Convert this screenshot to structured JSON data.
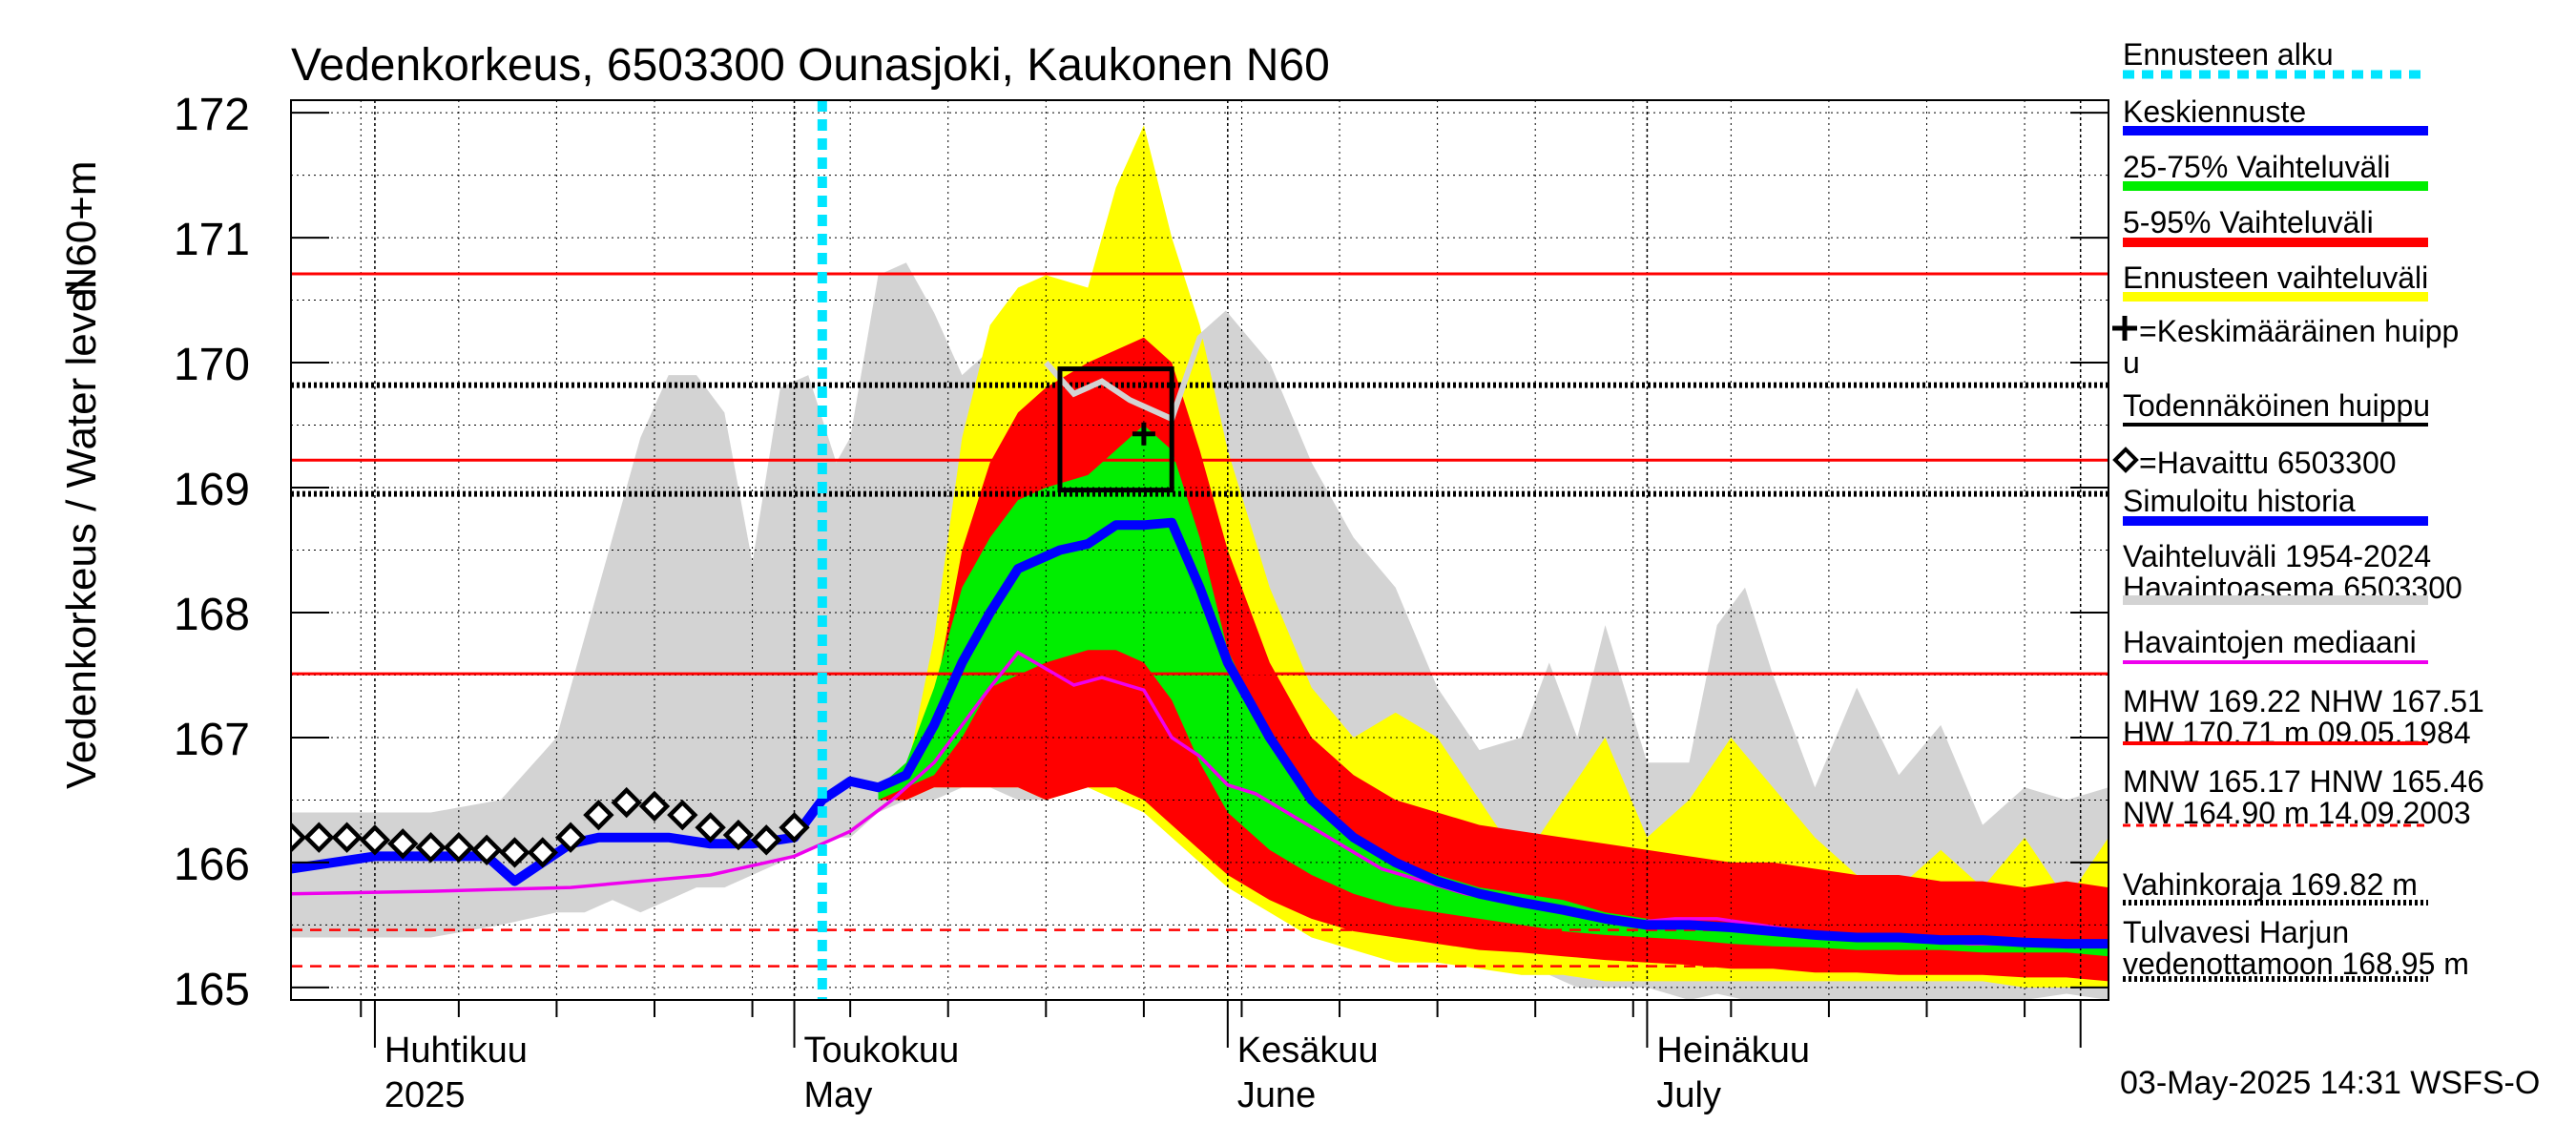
{
  "chart_data": {
    "type": "area",
    "title": "Vedenkorkeus, 6503300 Ounasjoki, Kaukonen N60",
    "ylabel": "Vedenkorkeus / Water level",
    "yunit": "N60+m",
    "ylim": [
      164.9,
      172.1
    ],
    "yticks": [
      165,
      166,
      167,
      168,
      169,
      170,
      171,
      172
    ],
    "xlim": [
      "2025-03-26",
      "2025-08-03"
    ],
    "grid": true,
    "legend_position": "right",
    "x_month_labels": [
      {
        "fi": "Huhtikuu",
        "en": "2025",
        "date": "2025-04-01"
      },
      {
        "fi": "Toukokuu",
        "en": "May",
        "date": "2025-05-01"
      },
      {
        "fi": "Kesäkuu",
        "en": "June",
        "date": "2025-06-01"
      },
      {
        "fi": "Heinäkuu",
        "en": "July",
        "date": "2025-07-01"
      }
    ],
    "forecast_start": "2025-05-03",
    "reference_lines": [
      {
        "name": "HW",
        "value": 170.71,
        "style": "solid",
        "color": "#ff0000"
      },
      {
        "name": "MHW",
        "value": 169.22,
        "style": "solid",
        "color": "#ff0000"
      },
      {
        "name": "NHW",
        "value": 167.51,
        "style": "solid",
        "color": "#ff0000"
      },
      {
        "name": "HNW",
        "value": 165.46,
        "style": "dashed",
        "color": "#ff0000"
      },
      {
        "name": "MNW",
        "value": 165.17,
        "style": "dashed",
        "color": "#ff0000"
      },
      {
        "name": "Vahinkoraja",
        "value": 169.82,
        "style": "dotted",
        "color": "#000000"
      },
      {
        "name": "Tulvavesi Harjun vedenottamoon",
        "value": 168.95,
        "style": "dotted",
        "color": "#000000"
      }
    ],
    "probable_peak_box": {
      "x0": "2025-05-20",
      "x1": "2025-05-28",
      "y0": 168.98,
      "y1": 169.95
    },
    "mean_peak_marker": {
      "x": "2025-05-26",
      "y": 169.43
    },
    "colors": {
      "history_range": "#d3d3d3",
      "forecast_range": "#ffff00",
      "p5_95": "#ff0000",
      "p25_75": "#00ee00",
      "mean_forecast": "#0000ff",
      "median": "#ee00ee",
      "observed": "#000000",
      "forecast_start": "#00e5ff",
      "max_history": "#d3d3d3"
    },
    "series": {
      "history_range": {
        "x": [
          "2025-03-26",
          "2025-04-05",
          "2025-04-10",
          "2025-04-14",
          "2025-04-16",
          "2025-04-18",
          "2025-04-20",
          "2025-04-22",
          "2025-04-24",
          "2025-04-26",
          "2025-04-28",
          "2025-04-30",
          "2025-05-02",
          "2025-05-04",
          "2025-05-05",
          "2025-05-07",
          "2025-05-09",
          "2025-05-11",
          "2025-05-13",
          "2025-05-15",
          "2025-05-17",
          "2025-05-19",
          "2025-05-22",
          "2025-05-25",
          "2025-05-28",
          "2025-06-01",
          "2025-06-04",
          "2025-06-07",
          "2025-06-10",
          "2025-06-13",
          "2025-06-16",
          "2025-06-19",
          "2025-06-22",
          "2025-06-24",
          "2025-06-26",
          "2025-06-28",
          "2025-07-01",
          "2025-07-04",
          "2025-07-06",
          "2025-07-08",
          "2025-07-10",
          "2025-07-13",
          "2025-07-16",
          "2025-07-19",
          "2025-07-22",
          "2025-07-25",
          "2025-07-28",
          "2025-07-31",
          "2025-08-03"
        ],
        "upper": [
          166.4,
          166.4,
          166.5,
          167.0,
          167.8,
          168.6,
          169.4,
          169.9,
          169.9,
          169.6,
          168.4,
          169.8,
          169.9,
          169.2,
          169.4,
          170.7,
          170.8,
          170.4,
          169.9,
          170.1,
          169.9,
          169.4,
          169.0,
          169.3,
          170.0,
          170.4,
          170.0,
          169.2,
          168.6,
          168.2,
          167.4,
          166.9,
          167.0,
          167.6,
          167.0,
          167.9,
          166.8,
          166.8,
          167.9,
          168.2,
          167.5,
          166.6,
          167.4,
          166.7,
          167.1,
          166.3,
          166.6,
          166.5,
          166.6
        ],
        "lower": [
          165.4,
          165.4,
          165.5,
          165.6,
          165.6,
          165.7,
          165.6,
          165.7,
          165.8,
          165.8,
          165.9,
          166.0,
          166.1,
          166.2,
          166.2,
          166.4,
          166.5,
          166.5,
          166.6,
          166.6,
          166.5,
          166.5,
          166.6,
          166.5,
          166.5,
          166.3,
          166.0,
          165.8,
          165.6,
          165.5,
          165.3,
          165.2,
          165.1,
          165.1,
          165.0,
          165.0,
          165.0,
          164.9,
          164.95,
          164.9,
          164.9,
          164.9,
          164.9,
          164.9,
          164.9,
          164.9,
          164.9,
          164.95,
          164.9
        ]
      },
      "forecast_range": {
        "x": [
          "2025-05-07",
          "2025-05-09",
          "2025-05-11",
          "2025-05-13",
          "2025-05-15",
          "2025-05-17",
          "2025-05-19",
          "2025-05-22",
          "2025-05-24",
          "2025-05-26",
          "2025-05-28",
          "2025-05-30",
          "2025-06-01",
          "2025-06-04",
          "2025-06-07",
          "2025-06-10",
          "2025-06-13",
          "2025-06-16",
          "2025-06-19",
          "2025-06-22",
          "2025-06-25",
          "2025-06-28",
          "2025-07-01",
          "2025-07-04",
          "2025-07-07",
          "2025-07-10",
          "2025-07-13",
          "2025-07-16",
          "2025-07-19",
          "2025-07-22",
          "2025-07-25",
          "2025-07-28",
          "2025-07-31",
          "2025-08-03"
        ],
        "upper": [
          166.5,
          166.7,
          167.8,
          169.4,
          170.3,
          170.6,
          170.7,
          170.6,
          171.4,
          171.9,
          171.0,
          170.3,
          169.3,
          168.2,
          167.4,
          167.0,
          167.2,
          167.0,
          166.5,
          166.0,
          166.5,
          167.0,
          166.2,
          166.5,
          167.0,
          166.6,
          166.2,
          165.9,
          165.8,
          166.1,
          165.8,
          166.2,
          165.7,
          166.2
        ],
        "lower": [
          166.5,
          166.5,
          166.6,
          166.6,
          166.6,
          166.6,
          166.5,
          166.6,
          166.5,
          166.4,
          166.2,
          166.0,
          165.8,
          165.6,
          165.4,
          165.3,
          165.2,
          165.2,
          165.15,
          165.1,
          165.1,
          165.05,
          165.05,
          165.05,
          165.05,
          165.05,
          165.05,
          165.05,
          165.05,
          165.05,
          165.05,
          165.0,
          165.0,
          165.0
        ]
      },
      "p5_95": {
        "x": [
          "2025-05-07",
          "2025-05-09",
          "2025-05-11",
          "2025-05-13",
          "2025-05-15",
          "2025-05-17",
          "2025-05-19",
          "2025-05-22",
          "2025-05-24",
          "2025-05-26",
          "2025-05-28",
          "2025-05-30",
          "2025-06-01",
          "2025-06-04",
          "2025-06-07",
          "2025-06-10",
          "2025-06-13",
          "2025-06-16",
          "2025-06-19",
          "2025-06-22",
          "2025-06-25",
          "2025-06-28",
          "2025-07-01",
          "2025-07-04",
          "2025-07-07",
          "2025-07-10",
          "2025-07-13",
          "2025-07-16",
          "2025-07-19",
          "2025-07-22",
          "2025-07-25",
          "2025-07-28",
          "2025-07-31",
          "2025-08-03"
        ],
        "upper": [
          166.5,
          166.7,
          167.3,
          168.5,
          169.2,
          169.6,
          169.8,
          170.0,
          170.1,
          170.2,
          170.0,
          169.3,
          168.5,
          167.6,
          167.0,
          166.7,
          166.5,
          166.4,
          166.3,
          166.25,
          166.2,
          166.15,
          166.1,
          166.05,
          166.0,
          166.0,
          165.95,
          165.9,
          165.9,
          165.85,
          165.85,
          165.8,
          165.85,
          165.8
        ],
        "lower": [
          166.5,
          166.5,
          166.6,
          166.6,
          166.6,
          166.6,
          166.5,
          166.6,
          166.6,
          166.5,
          166.3,
          166.1,
          165.9,
          165.7,
          165.55,
          165.45,
          165.4,
          165.35,
          165.3,
          165.28,
          165.25,
          165.22,
          165.2,
          165.18,
          165.15,
          165.15,
          165.12,
          165.12,
          165.1,
          165.1,
          165.1,
          165.08,
          165.08,
          165.05
        ]
      },
      "p25_75": {
        "x": [
          "2025-05-07",
          "2025-05-09",
          "2025-05-11",
          "2025-05-13",
          "2025-05-15",
          "2025-05-17",
          "2025-05-19",
          "2025-05-22",
          "2025-05-24",
          "2025-05-26",
          "2025-05-28",
          "2025-05-30",
          "2025-06-01",
          "2025-06-04",
          "2025-06-07",
          "2025-06-10",
          "2025-06-13",
          "2025-06-16",
          "2025-06-19",
          "2025-06-22",
          "2025-06-25",
          "2025-06-28",
          "2025-07-01",
          "2025-07-04",
          "2025-07-07",
          "2025-07-10",
          "2025-07-13",
          "2025-07-16",
          "2025-07-19",
          "2025-07-22",
          "2025-07-25",
          "2025-07-28",
          "2025-07-31",
          "2025-08-03"
        ],
        "upper": [
          166.6,
          166.8,
          167.4,
          168.2,
          168.6,
          168.9,
          169.0,
          169.1,
          169.3,
          169.5,
          169.3,
          168.6,
          167.7,
          167.0,
          166.5,
          166.2,
          166.0,
          165.9,
          165.8,
          165.75,
          165.7,
          165.6,
          165.55,
          165.5,
          165.5,
          165.45,
          165.45,
          165.4,
          165.4,
          165.4,
          165.38,
          165.38,
          165.38,
          165.35
        ],
        "lower": [
          166.5,
          166.6,
          166.7,
          167.0,
          167.4,
          167.5,
          167.6,
          167.7,
          167.7,
          167.6,
          167.3,
          166.8,
          166.4,
          166.1,
          165.9,
          165.75,
          165.65,
          165.6,
          165.55,
          165.5,
          165.45,
          165.42,
          165.4,
          165.38,
          165.35,
          165.33,
          165.32,
          165.3,
          165.3,
          165.3,
          165.28,
          165.28,
          165.28,
          165.25
        ]
      },
      "mean_forecast": {
        "x": [
          "2025-03-26",
          "2025-04-01",
          "2025-04-05",
          "2025-04-09",
          "2025-04-11",
          "2025-04-13",
          "2025-04-15",
          "2025-04-17",
          "2025-04-19",
          "2025-04-22",
          "2025-04-25",
          "2025-04-28",
          "2025-05-01",
          "2025-05-03",
          "2025-05-05",
          "2025-05-07",
          "2025-05-09",
          "2025-05-11",
          "2025-05-13",
          "2025-05-15",
          "2025-05-17",
          "2025-05-20",
          "2025-05-22",
          "2025-05-24",
          "2025-05-26",
          "2025-05-28",
          "2025-05-30",
          "2025-06-01",
          "2025-06-04",
          "2025-06-07",
          "2025-06-10",
          "2025-06-13",
          "2025-06-16",
          "2025-06-19",
          "2025-06-22",
          "2025-06-25",
          "2025-06-28",
          "2025-07-01",
          "2025-07-04",
          "2025-07-07",
          "2025-07-10",
          "2025-07-13",
          "2025-07-16",
          "2025-07-19",
          "2025-07-22",
          "2025-07-25",
          "2025-07-28",
          "2025-07-31",
          "2025-08-03"
        ],
        "values": [
          165.95,
          166.05,
          166.05,
          166.05,
          165.85,
          166.0,
          166.15,
          166.2,
          166.2,
          166.2,
          166.15,
          166.15,
          166.2,
          166.5,
          166.65,
          166.6,
          166.7,
          167.1,
          167.6,
          168.0,
          168.35,
          168.5,
          168.55,
          168.7,
          168.7,
          168.72,
          168.2,
          167.6,
          167.0,
          166.5,
          166.2,
          166.0,
          165.85,
          165.75,
          165.68,
          165.62,
          165.55,
          165.5,
          165.5,
          165.48,
          165.45,
          165.42,
          165.4,
          165.4,
          165.38,
          165.38,
          165.36,
          165.35,
          165.35
        ]
      },
      "median": {
        "x": [
          "2025-03-26",
          "2025-04-05",
          "2025-04-15",
          "2025-04-25",
          "2025-05-01",
          "2025-05-05",
          "2025-05-08",
          "2025-05-11",
          "2025-05-13",
          "2025-05-15",
          "2025-05-17",
          "2025-05-19",
          "2025-05-21",
          "2025-05-23",
          "2025-05-26",
          "2025-05-28",
          "2025-05-30",
          "2025-06-01",
          "2025-06-03",
          "2025-06-06",
          "2025-06-09",
          "2025-06-12",
          "2025-06-15",
          "2025-06-18",
          "2025-06-21",
          "2025-06-24",
          "2025-06-27",
          "2025-06-30",
          "2025-07-03",
          "2025-07-06",
          "2025-07-09",
          "2025-07-12",
          "2025-07-15",
          "2025-07-18",
          "2025-07-21",
          "2025-07-24",
          "2025-07-27",
          "2025-07-30",
          "2025-08-03"
        ],
        "values": [
          165.75,
          165.77,
          165.8,
          165.9,
          166.05,
          166.25,
          166.5,
          166.8,
          167.1,
          167.4,
          167.68,
          167.55,
          167.42,
          167.48,
          167.38,
          167.0,
          166.85,
          166.62,
          166.55,
          166.35,
          166.15,
          165.95,
          165.85,
          165.75,
          165.7,
          165.62,
          165.55,
          165.52,
          165.55,
          165.55,
          165.5,
          165.45,
          165.4,
          165.38,
          165.38,
          165.35,
          165.35,
          165.33,
          165.33
        ]
      },
      "max_history": {
        "x": [
          "2025-05-19",
          "2025-05-21",
          "2025-05-23",
          "2025-05-25",
          "2025-05-27",
          "2025-05-28",
          "2025-05-30",
          "2025-06-01"
        ],
        "values": [
          170.0,
          169.75,
          169.85,
          169.7,
          169.6,
          169.55,
          170.2,
          170.4
        ]
      },
      "observed": {
        "x": [
          "2025-03-26",
          "2025-03-28",
          "2025-03-30",
          "2025-04-01",
          "2025-04-03",
          "2025-04-05",
          "2025-04-07",
          "2025-04-09",
          "2025-04-11",
          "2025-04-13",
          "2025-04-15",
          "2025-04-17",
          "2025-04-19",
          "2025-04-21",
          "2025-04-23",
          "2025-04-25",
          "2025-04-27",
          "2025-04-29",
          "2025-05-01"
        ],
        "values": [
          166.2,
          166.2,
          166.2,
          166.18,
          166.15,
          166.12,
          166.12,
          166.1,
          166.08,
          166.08,
          166.2,
          166.38,
          166.48,
          166.45,
          166.38,
          166.28,
          166.22,
          166.18,
          166.28
        ]
      }
    }
  },
  "legend": [
    {
      "label": "Ennusteen alku",
      "color": "#00e5ff",
      "style": "dotted-thick"
    },
    {
      "label": "Keskiennuste",
      "color": "#0000ff",
      "style": "solid-thick"
    },
    {
      "label": "25-75% Vaihteluväli",
      "color": "#00ee00",
      "style": "solid-thick"
    },
    {
      "label": "5-95% Vaihteluväli",
      "color": "#ff0000",
      "style": "solid-thick"
    },
    {
      "label": "Ennusteen vaihteluväli",
      "color": "#ffff00",
      "style": "solid-thick"
    },
    {
      "label": "=Keskimääräinen huipp",
      "label2": "u",
      "symbol": "plus"
    },
    {
      "label": "Todennäköinen huippu",
      "color": "#000000",
      "style": "solid"
    },
    {
      "label": "=Havaittu 6503300",
      "symbol": "diamond"
    },
    {
      "label": "Simuloitu historia",
      "color": "#0000ff",
      "style": "solid-thick"
    },
    {
      "label": "Vaihteluväli 1954-2024",
      "label2": " Havaintoasema 6503300",
      "color": "#d3d3d3",
      "style": "solid-thick"
    },
    {
      "label": "Havaintojen mediaani",
      "color": "#ee00ee",
      "style": "solid"
    },
    {
      "label": "MHW 169.22 NHW 167.51",
      "label2": "HW 170.71 m 09.05.1984",
      "color": "#ff0000",
      "style": "solid"
    },
    {
      "label": "MNW 165.17 HNW 165.46",
      "label2": "NW 164.90 m 14.09.2003",
      "color": "#ff0000",
      "style": "dashed"
    },
    {
      "label": "Vahinkoraja 169.82 m",
      "color": "#000000",
      "style": "dotted"
    },
    {
      "label": "Tulvavesi Harjun",
      "label2": "vedenottamoon 168.95 m",
      "color": "#000000",
      "style": "dotted"
    }
  ],
  "footer": "03-May-2025 14:31 WSFS-O"
}
